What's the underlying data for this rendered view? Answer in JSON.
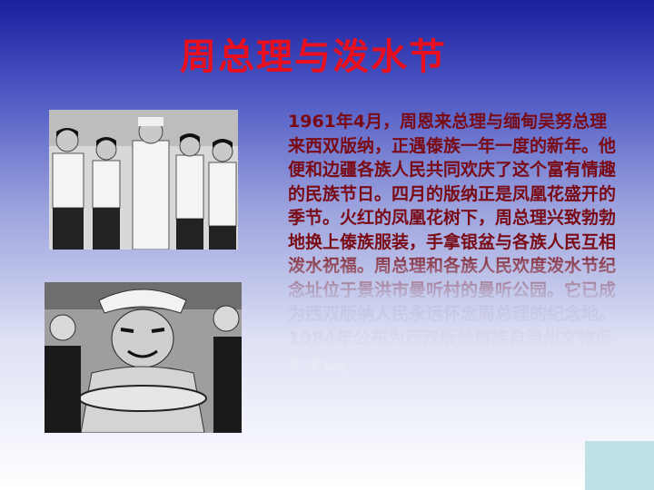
{
  "slide": {
    "title": "周总理与泼水节",
    "paragraph": "1961年4月，周恩来总理与缅甸吴努总理来西双版纳，正遇傣族一年一度的新年。他便和边疆各族人民共同欢庆了这个富有情趣的民族节日。四月的版纳正是凤凰花盛开的季节。火红的凤凰花树下，周总理兴致勃勃地换上傣族服装，手拿银盆与各族人民互相泼水祝福。周总理和各族人民欢度泼水节纪念址位于景洪市曼听村的曼听公园。它已成为西双版纳人民永远怀念周总理的纪念地。1984年公布为西双版纳傣族自治州文物保护单位。"
  },
  "colors": {
    "title": "#e8101e",
    "text": "#7a0a14",
    "background_top": "#1a1f9e",
    "corner_box": "#bfe0e4"
  }
}
